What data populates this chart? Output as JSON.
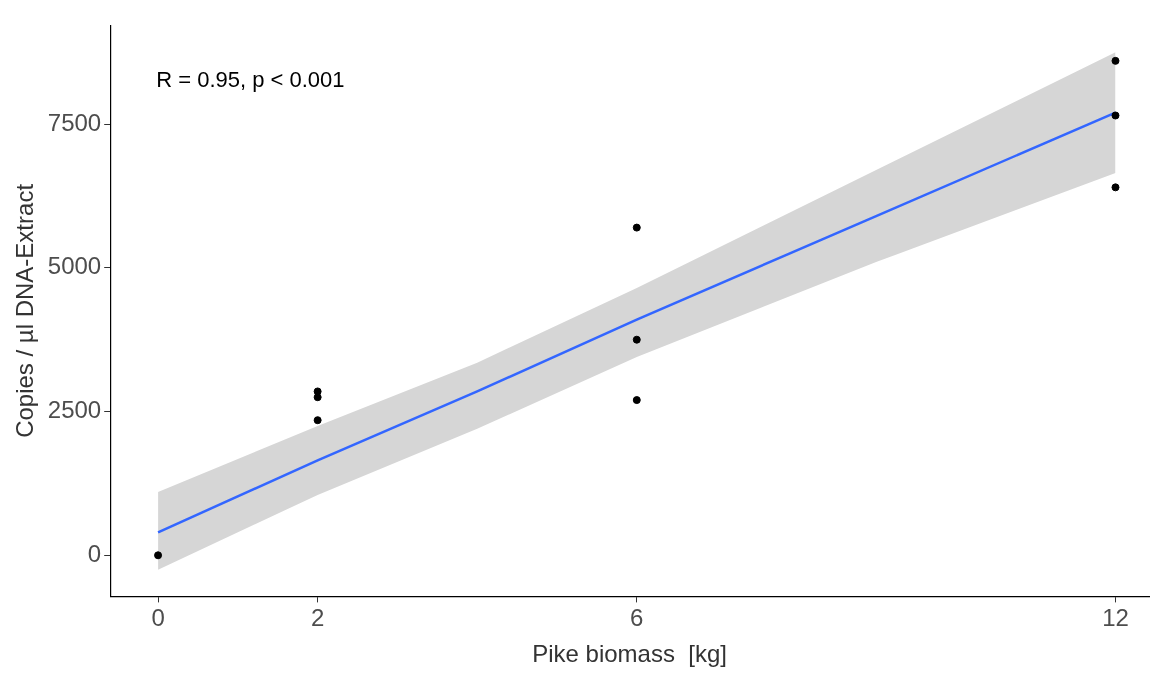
{
  "chart_data": {
    "type": "scatter",
    "xlabel": "Pike biomass  [kg]",
    "ylabel": "Copies / µl DNA-Extract",
    "annotations": [
      "R = 0.95, p < 0.001"
    ],
    "xlim": [
      -0.6,
      12.42
    ],
    "xticks": [
      0,
      2,
      6,
      12
    ],
    "ylim": [
      -715,
      9217
    ],
    "yticks": [
      0,
      2500,
      5000,
      7500
    ],
    "grid": false,
    "legend": false,
    "series": [
      {
        "color": "#000000",
        "marker": "circle",
        "x": [
          0,
          2,
          2,
          2,
          6,
          6,
          6,
          12,
          12,
          12
        ],
        "values": [
          0,
          2850,
          2750,
          2350,
          5700,
          3750,
          2700,
          8600,
          7650,
          6400
        ]
      },
      {
        "type": "line",
        "color": "#3366ff",
        "x": [
          0,
          2,
          4,
          6,
          9,
          12
        ],
        "values": [
          400,
          1650,
          2850,
          4100,
          5900,
          7700
        ],
        "lower": [
          -250,
          1050,
          2200,
          3450,
          5100,
          6650
        ],
        "upper": [
          1100,
          2250,
          3350,
          4650,
          6700,
          8750
        ]
      }
    ]
  }
}
